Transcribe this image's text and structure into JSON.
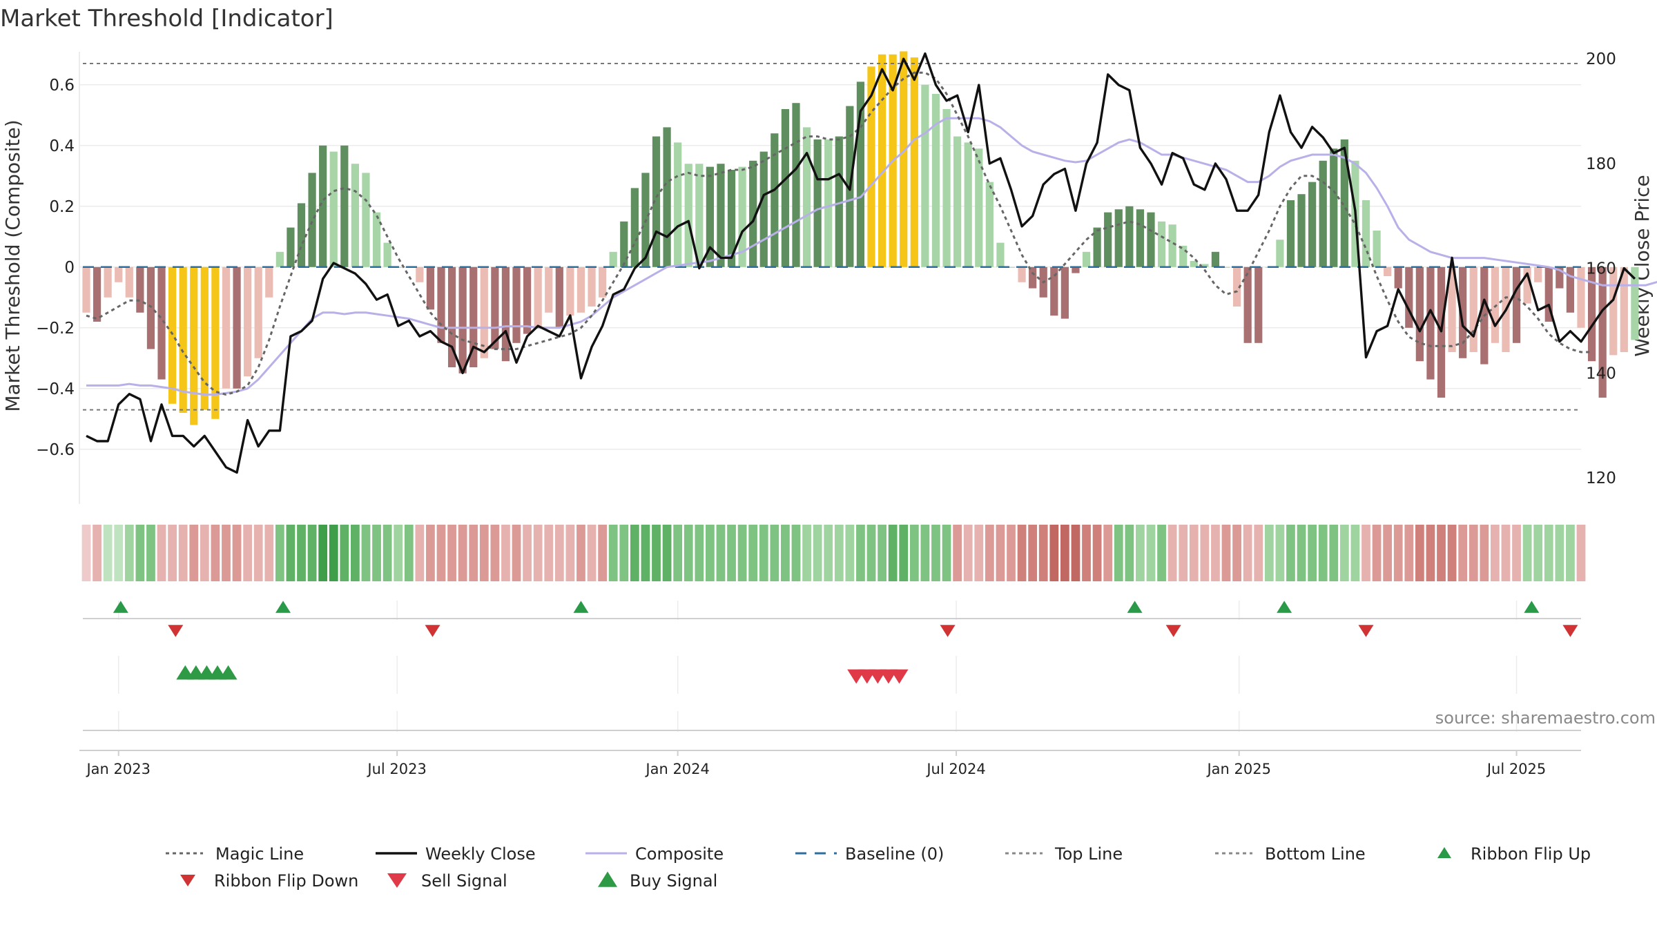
{
  "page": {
    "title": "Market Threshold [Indicator]",
    "source": "source: sharemaestro.com"
  },
  "colors": {
    "bar_strong_pos": "#5f8f5f",
    "bar_weak_pos": "#a8d5a8",
    "bar_strong_neg": "#a87070",
    "bar_weak_neg": "#ebbcb4",
    "bar_extreme": "#f5c518",
    "weekly_close": "#111111",
    "composite": "#b8b0e8",
    "magic": "#666666",
    "baseline": "#2c6e9e",
    "flip_up": "#2a9a48",
    "flip_down": "#d03333",
    "sell": "#e03a48",
    "buy": "#2f9a45"
  },
  "chart_data": {
    "type": "bar",
    "title": "Market Threshold [Indicator]",
    "ylabel": "Market Threshold (Composite)",
    "y2label": "Weekly Close Price",
    "ylim": [
      -0.78,
      0.72
    ],
    "y2lim": [
      115,
      202
    ],
    "yticks": [
      -0.6,
      -0.4,
      -0.2,
      0,
      0.2,
      0.4,
      0.6
    ],
    "ytick_labels": [
      "−0.6",
      "−0.4",
      "−0.2",
      "0",
      "0.2",
      "0.4",
      "0.6"
    ],
    "y2ticks": [
      120,
      140,
      160,
      180,
      200
    ],
    "x_start": "2022-12-09",
    "weeks": 140,
    "xticks": [
      {
        "label": "Jan 2023",
        "week": 3
      },
      {
        "label": "Jul 2023",
        "week": 28.9
      },
      {
        "label": "Jan 2024",
        "week": 55
      },
      {
        "label": "Jul 2024",
        "week": 80.9
      },
      {
        "label": "Jan 2025",
        "week": 107.2
      },
      {
        "label": "Jul 2025",
        "week": 133
      }
    ],
    "top_line": 0.67,
    "bottom_line": -0.47,
    "baseline": 0,
    "composite_bars": [
      -0.15,
      -0.18,
      -0.1,
      -0.05,
      -0.1,
      -0.15,
      -0.27,
      -0.37,
      -0.45,
      -0.48,
      -0.52,
      -0.47,
      -0.5,
      -0.4,
      -0.4,
      -0.36,
      -0.3,
      -0.1,
      0.05,
      0.13,
      0.21,
      0.31,
      0.4,
      0.38,
      0.4,
      0.34,
      0.31,
      0.18,
      0.08,
      0,
      0,
      -0.05,
      -0.14,
      -0.25,
      -0.33,
      -0.35,
      -0.33,
      -0.3,
      -0.27,
      -0.31,
      -0.25,
      -0.22,
      -0.2,
      -0.15,
      -0.2,
      -0.16,
      -0.15,
      -0.13,
      -0.1,
      0.05,
      0.15,
      0.26,
      0.31,
      0.43,
      0.46,
      0.41,
      0.34,
      0.34,
      0.33,
      0.34,
      0.32,
      0.33,
      0.35,
      0.38,
      0.44,
      0.52,
      0.54,
      0.46,
      0.42,
      0.42,
      0.43,
      0.53,
      0.61,
      0.66,
      0.7,
      0.7,
      0.71,
      0.69,
      0.6,
      0.57,
      0.52,
      0.43,
      0.41,
      0.39,
      0.28,
      0.08,
      0,
      -0.05,
      -0.07,
      -0.1,
      -0.16,
      -0.17,
      -0.02,
      0.05,
      0.13,
      0.18,
      0.19,
      0.2,
      0.19,
      0.18,
      0.15,
      0.14,
      0.07,
      0.02,
      0.01,
      0.05,
      0,
      -0.13,
      -0.25,
      -0.25,
      0,
      0.09,
      0.22,
      0.24,
      0.28,
      0.35,
      0.39,
      0.42,
      0.35,
      0.22,
      0.12,
      -0.03,
      -0.07,
      -0.2,
      -0.31,
      -0.37,
      -0.43,
      -0.28,
      -0.3,
      -0.28,
      -0.32,
      -0.25,
      -0.28,
      -0.25,
      -0.12,
      -0.05,
      -0.18,
      -0.07,
      -0.15,
      -0.2,
      -0.31,
      -0.43,
      -0.29,
      -0.28,
      -0.24
    ],
    "bar_shades": [
      "wn",
      "sn",
      "wn",
      "wn",
      "wn",
      "sn",
      "sn",
      "sn",
      "ex",
      "ex",
      "ex",
      "ex",
      "ex",
      "wn",
      "sn",
      "wn",
      "wn",
      "wn",
      "wp",
      "sp",
      "sp",
      "sp",
      "sp",
      "wp",
      "sp",
      "wp",
      "wp",
      "wp",
      "wp",
      "wp",
      "wp",
      "wn",
      "sn",
      "sn",
      "sn",
      "sn",
      "sn",
      "wn",
      "sn",
      "sn",
      "sn",
      "sn",
      "wn",
      "wn",
      "sn",
      "wn",
      "wn",
      "wn",
      "wn",
      "wp",
      "sp",
      "sp",
      "sp",
      "sp",
      "sp",
      "wp",
      "wp",
      "wp",
      "sp",
      "sp",
      "sp",
      "wp",
      "sp",
      "sp",
      "sp",
      "sp",
      "sp",
      "wp",
      "sp",
      "wp",
      "sp",
      "sp",
      "sp",
      "ex",
      "ex",
      "ex",
      "ex",
      "ex",
      "wp",
      "wp",
      "wp",
      "wp",
      "wp",
      "wp",
      "wp",
      "wp",
      "wp",
      "wn",
      "sn",
      "sn",
      "sn",
      "sn",
      "sn",
      "wp",
      "sp",
      "sp",
      "sp",
      "sp",
      "sp",
      "sp",
      "wp",
      "wp",
      "wp",
      "wp",
      "wp",
      "sp",
      "wp",
      "wn",
      "sn",
      "sn",
      "wp",
      "wp",
      "sp",
      "sp",
      "sp",
      "sp",
      "sp",
      "sp",
      "wp",
      "wp",
      "wp",
      "wn",
      "sn",
      "sn",
      "sn",
      "sn",
      "sn",
      "wn",
      "sn",
      "wn",
      "sn",
      "wn",
      "wn",
      "sn",
      "wn",
      "wn",
      "sn",
      "sn",
      "sn",
      "wn",
      "sn",
      "sn",
      "wn",
      "wn"
    ],
    "weekly_close": [
      128,
      127,
      127,
      134,
      136,
      135,
      127,
      134,
      128,
      128,
      126,
      128,
      125,
      122,
      121,
      131,
      126,
      129,
      129,
      147,
      148,
      150,
      158,
      161,
      160,
      159,
      157,
      154,
      155,
      149,
      150,
      147,
      148,
      146,
      145,
      140,
      145,
      144,
      146,
      148,
      142,
      147,
      149,
      148,
      147,
      151,
      139,
      145,
      149,
      155,
      156,
      160,
      162,
      167,
      166,
      168,
      169,
      160,
      164,
      162,
      162,
      167,
      169,
      174,
      175,
      177,
      179,
      182,
      177,
      177,
      178,
      175,
      190,
      193,
      198,
      194,
      200,
      196,
      201,
      195,
      192,
      193,
      186,
      195,
      180,
      181,
      175,
      168,
      170,
      176,
      178,
      179,
      171,
      180,
      184,
      197,
      195,
      194,
      183,
      180,
      176,
      182,
      181,
      176,
      175,
      180,
      177,
      171,
      171,
      174,
      186,
      193,
      186,
      183,
      187,
      185,
      182,
      183,
      171,
      143,
      148,
      149,
      156,
      152,
      148,
      152,
      148,
      162,
      149,
      147,
      154,
      149,
      152,
      156,
      159,
      152,
      153,
      146,
      148,
      146,
      149,
      152,
      154,
      160,
      158
    ],
    "composite_line": [
      -0.39,
      -0.39,
      -0.39,
      -0.39,
      -0.385,
      -0.39,
      -0.39,
      -0.395,
      -0.4,
      -0.41,
      -0.415,
      -0.42,
      -0.42,
      -0.415,
      -0.41,
      -0.4,
      -0.37,
      -0.33,
      -0.29,
      -0.25,
      -0.21,
      -0.17,
      -0.15,
      -0.15,
      -0.155,
      -0.15,
      -0.15,
      -0.155,
      -0.16,
      -0.165,
      -0.17,
      -0.18,
      -0.19,
      -0.2,
      -0.2,
      -0.2,
      -0.2,
      -0.2,
      -0.2,
      -0.195,
      -0.195,
      -0.195,
      -0.2,
      -0.2,
      -0.2,
      -0.19,
      -0.18,
      -0.16,
      -0.13,
      -0.1,
      -0.08,
      -0.06,
      -0.04,
      -0.02,
      0,
      0.005,
      0.01,
      0.015,
      0.02,
      0.03,
      0.04,
      0.05,
      0.07,
      0.09,
      0.11,
      0.13,
      0.15,
      0.17,
      0.19,
      0.2,
      0.21,
      0.22,
      0.23,
      0.27,
      0.31,
      0.35,
      0.38,
      0.42,
      0.44,
      0.47,
      0.49,
      0.49,
      0.49,
      0.49,
      0.48,
      0.46,
      0.43,
      0.4,
      0.38,
      0.37,
      0.36,
      0.35,
      0.345,
      0.35,
      0.37,
      0.39,
      0.41,
      0.42,
      0.41,
      0.39,
      0.37,
      0.37,
      0.36,
      0.35,
      0.34,
      0.33,
      0.32,
      0.3,
      0.28,
      0.28,
      0.3,
      0.33,
      0.35,
      0.36,
      0.37,
      0.37,
      0.37,
      0.36,
      0.34,
      0.31,
      0.26,
      0.2,
      0.13,
      0.09,
      0.07,
      0.05,
      0.04,
      0.03,
      0.03,
      0.03,
      0.03,
      0.025,
      0.02,
      0.015,
      0.01,
      0.005,
      0,
      -0.01,
      -0.03,
      -0.04,
      -0.05,
      -0.06,
      -0.06,
      -0.06,
      -0.06,
      -0.06,
      -0.05,
      -0.04
    ],
    "magic_line": [
      -0.16,
      -0.17,
      -0.15,
      -0.13,
      -0.11,
      -0.11,
      -0.13,
      -0.17,
      -0.22,
      -0.28,
      -0.33,
      -0.38,
      -0.41,
      -0.42,
      -0.41,
      -0.39,
      -0.33,
      -0.24,
      -0.13,
      -0.03,
      0.07,
      0.15,
      0.22,
      0.25,
      0.26,
      0.25,
      0.22,
      0.17,
      0.1,
      0.03,
      -0.03,
      -0.09,
      -0.15,
      -0.19,
      -0.22,
      -0.24,
      -0.25,
      -0.26,
      -0.27,
      -0.27,
      -0.27,
      -0.26,
      -0.25,
      -0.24,
      -0.23,
      -0.22,
      -0.2,
      -0.16,
      -0.11,
      -0.05,
      0.01,
      0.08,
      0.15,
      0.23,
      0.28,
      0.3,
      0.31,
      0.3,
      0.3,
      0.31,
      0.32,
      0.32,
      0.33,
      0.35,
      0.37,
      0.39,
      0.41,
      0.43,
      0.43,
      0.42,
      0.42,
      0.43,
      0.46,
      0.51,
      0.55,
      0.59,
      0.62,
      0.64,
      0.64,
      0.62,
      0.57,
      0.5,
      0.43,
      0.35,
      0.27,
      0.2,
      0.12,
      0.04,
      -0.02,
      -0.05,
      -0.03,
      0.01,
      0.05,
      0.09,
      0.12,
      0.13,
      0.14,
      0.15,
      0.14,
      0.12,
      0.1,
      0.08,
      0.06,
      0.03,
      -0.01,
      -0.06,
      -0.09,
      -0.08,
      -0.02,
      0.05,
      0.12,
      0.2,
      0.26,
      0.3,
      0.3,
      0.28,
      0.25,
      0.2,
      0.14,
      0.06,
      -0.03,
      -0.11,
      -0.18,
      -0.23,
      -0.25,
      -0.26,
      -0.26,
      -0.26,
      -0.25,
      -0.21,
      -0.16,
      -0.13,
      -0.1,
      -0.1,
      -0.13,
      -0.17,
      -0.22,
      -0.25,
      -0.27,
      -0.28,
      -0.28
    ],
    "ribbon_shades": [
      1,
      2,
      1,
      1,
      2,
      3,
      3,
      2,
      2,
      2,
      3,
      2,
      3,
      3,
      3,
      2,
      2,
      2,
      3,
      4,
      4,
      4,
      5,
      5,
      4,
      4,
      3,
      3,
      3,
      2,
      3,
      2,
      3,
      3,
      3,
      3,
      3,
      3,
      3,
      2,
      3,
      2,
      2,
      2,
      2,
      2,
      3,
      2,
      3,
      3,
      3,
      4,
      4,
      4,
      4,
      3,
      3,
      3,
      3,
      3,
      3,
      3,
      3,
      3,
      3,
      3,
      3,
      2,
      2,
      2,
      2,
      2,
      3,
      3,
      3,
      4,
      4,
      3,
      3,
      3,
      3,
      3,
      2,
      2,
      3,
      3,
      3,
      4,
      4,
      4,
      5,
      5,
      5,
      4,
      4,
      3,
      3,
      3,
      2,
      2,
      3,
      2,
      2,
      2,
      2,
      2,
      3,
      3,
      2,
      2,
      2,
      2,
      3,
      3,
      3,
      3,
      3,
      2,
      2,
      2,
      3,
      3,
      3,
      3,
      4,
      4,
      4,
      4,
      3,
      3,
      3,
      2,
      2,
      2,
      2,
      2,
      2,
      2,
      2,
      2
    ],
    "ribbon_sign": [
      -1,
      -1,
      1,
      1,
      1,
      1,
      1,
      -1,
      -1,
      -1,
      -1,
      -1,
      -1,
      -1,
      -1,
      -1,
      -1,
      -1,
      1,
      1,
      1,
      1,
      1,
      1,
      1,
      1,
      1,
      1,
      1,
      1,
      1,
      -1,
      -1,
      -1,
      -1,
      -1,
      -1,
      -1,
      -1,
      -1,
      -1,
      -1,
      -1,
      -1,
      -1,
      -1,
      -1,
      -1,
      -1,
      1,
      1,
      1,
      1,
      1,
      1,
      1,
      1,
      1,
      1,
      1,
      1,
      1,
      1,
      1,
      1,
      1,
      1,
      1,
      1,
      1,
      1,
      1,
      1,
      1,
      1,
      1,
      1,
      1,
      1,
      1,
      1,
      -1,
      -1,
      -1,
      -1,
      -1,
      -1,
      -1,
      -1,
      -1,
      -1,
      -1,
      -1,
      -1,
      -1,
      -1,
      1,
      1,
      1,
      1,
      1,
      -1,
      -1,
      -1,
      -1,
      -1,
      -1,
      -1,
      -1,
      -1,
      1,
      1,
      1,
      1,
      1,
      1,
      1,
      1,
      1,
      -1,
      -1,
      -1,
      -1,
      -1,
      -1,
      -1,
      -1,
      -1,
      -1,
      -1,
      -1,
      -1,
      -1,
      -1,
      1,
      1,
      1,
      1,
      1,
      -1,
      -1,
      -1,
      -1,
      -1,
      -1,
      -1
    ],
    "flip_up_weeks": [
      3.2,
      18.3,
      46,
      97.5,
      111.4,
      134.4
    ],
    "flip_down_weeks": [
      8.3,
      32.2,
      80.1,
      101.1,
      119,
      138
    ],
    "buy_signal_weeks": [
      9.2,
      10.2,
      11.2,
      12.2,
      13.2
    ],
    "sell_signal_weeks": [
      71.6,
      72.6,
      73.6,
      74.6,
      75.6
    ],
    "legend": [
      {
        "label": "Magic Line",
        "kind": "dotted"
      },
      {
        "label": "Weekly Close",
        "kind": "solid-black"
      },
      {
        "label": "Composite",
        "kind": "solid-lavender"
      },
      {
        "label": "Baseline (0)",
        "kind": "dashed-blue"
      },
      {
        "label": "Top Line",
        "kind": "dotted-gray"
      },
      {
        "label": "Bottom Line",
        "kind": "dotted-gray"
      },
      {
        "label": "Ribbon Flip Up",
        "kind": "triangle-up-green"
      },
      {
        "label": "Ribbon Flip Down",
        "kind": "triangle-down-red"
      },
      {
        "label": "Sell Signal",
        "kind": "triangle-down-pink"
      },
      {
        "label": "Buy Signal",
        "kind": "triangle-up-green"
      }
    ]
  }
}
